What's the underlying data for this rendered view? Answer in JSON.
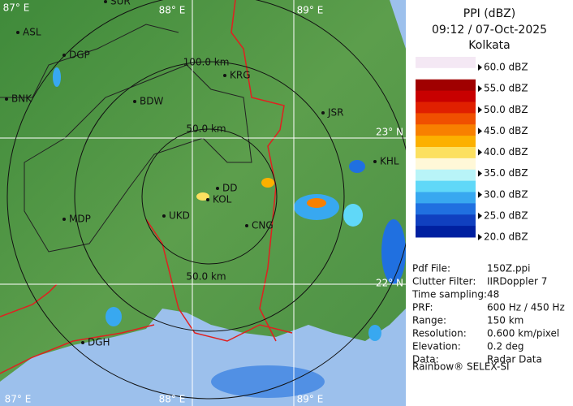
{
  "header": {
    "title": "PPI (dBZ)",
    "time": "09:12 / 07-Oct-2025",
    "station": "Kolkata"
  },
  "scale": {
    "labels": [
      "60.0 dBZ",
      "55.0 dBZ",
      "50.0 dBZ",
      "45.0 dBZ",
      "40.0 dBZ",
      "35.0 dBZ",
      "30.0 dBZ",
      "25.0 dBZ",
      "20.0 dBZ"
    ],
    "colors": [
      "#f4e8f4",
      "#ffffff",
      "#a00000",
      "#c80000",
      "#e02000",
      "#f05000",
      "#f88000",
      "#fcb000",
      "#fce060",
      "#fff8d8",
      "#b8f4f8",
      "#60d8f8",
      "#38a8f0",
      "#2070e0",
      "#1040c0",
      "#0020a0"
    ]
  },
  "map": {
    "grid_labels": [
      "87° E",
      "88° E",
      "89° E",
      "23° N",
      "22° N",
      "87° E",
      "88° E",
      "89° E"
    ],
    "ring_labels": [
      "100.0 km",
      "50.0 km",
      "50.0 km"
    ],
    "places": [
      "SUR",
      "ASL",
      "DGP",
      "BNK",
      "KRG",
      "BDW",
      "JSR",
      "KHL",
      "DD",
      "KOL",
      "UKD",
      "MDP",
      "CNG",
      "DGH"
    ]
  },
  "info": {
    "rows": [
      [
        "Pdf File:",
        "150Z.ppi"
      ],
      [
        "Clutter Filter:",
        "IIRDoppler 7"
      ],
      [
        "Time sampling:",
        "48"
      ],
      [
        "PRF:",
        "600 Hz / 450 Hz"
      ],
      [
        "Range:",
        "150 km"
      ],
      [
        "Resolution:",
        "0.600 km/pixel"
      ],
      [
        "Elevation:",
        "0.2 deg"
      ],
      [
        "Data:",
        "Radar Data"
      ]
    ],
    "footer": "Rainbow® SELEX-SI"
  }
}
